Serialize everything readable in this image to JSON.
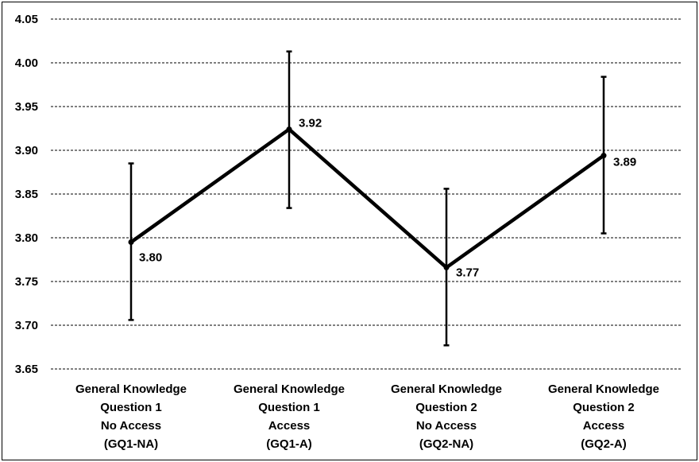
{
  "chart_data": {
    "type": "line",
    "title": "",
    "xlabel": "",
    "ylabel": "",
    "ylim": [
      3.65,
      4.05
    ],
    "yticks": [
      "3.65",
      "3.70",
      "3.75",
      "3.80",
      "3.85",
      "3.90",
      "3.95",
      "4.00",
      "4.05"
    ],
    "grid": true,
    "line_color": "#000000",
    "categories": [
      [
        "General Knowledge",
        "Question 1",
        "No Access",
        "(GQ1-NA)"
      ],
      [
        "General Knowledge",
        "Question 1",
        "Access",
        "(GQ1-A)"
      ],
      [
        "General Knowledge",
        "Question 2",
        "No Access",
        "(GQ2-NA)"
      ],
      [
        "General Knowledge",
        "Question 2",
        "Access",
        "(GQ2-A)"
      ]
    ],
    "series": [
      {
        "values": [
          3.795,
          3.924,
          3.766,
          3.894
        ],
        "error_low": [
          3.706,
          3.834,
          3.677,
          3.805
        ],
        "error_high": [
          3.885,
          4.013,
          3.856,
          3.984
        ],
        "data_labels": [
          "3.80",
          "3.92",
          "3.77",
          "3.89"
        ]
      }
    ]
  }
}
